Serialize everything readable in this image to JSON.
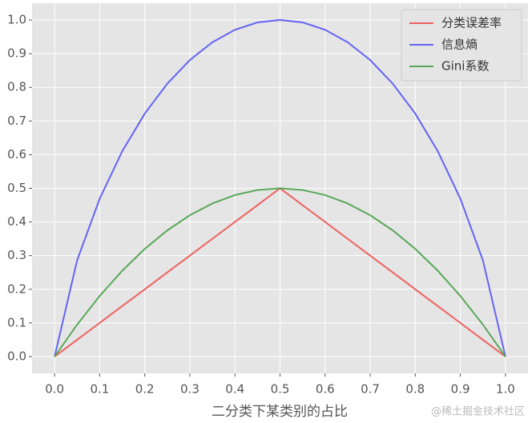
{
  "chart_data": {
    "type": "line",
    "xlabel": "二分类下某类别的占比",
    "watermark": "@稀土掘金技术社区",
    "x": [
      0,
      0.05,
      0.1,
      0.15,
      0.2,
      0.25,
      0.3,
      0.35,
      0.4,
      0.45,
      0.5,
      0.55,
      0.6,
      0.65,
      0.7,
      0.75,
      0.8,
      0.85,
      0.9,
      0.95,
      1
    ],
    "series": [
      {
        "name": "分类误差率",
        "color": "#ee6060",
        "values": [
          0,
          0.05,
          0.1,
          0.15,
          0.2,
          0.25,
          0.3,
          0.35,
          0.4,
          0.45,
          0.5,
          0.45,
          0.4,
          0.35,
          0.3,
          0.25,
          0.2,
          0.15,
          0.1,
          0.05,
          0
        ]
      },
      {
        "name": "信息熵",
        "color": "#6464f4",
        "values": [
          0,
          0.286,
          0.469,
          0.61,
          0.722,
          0.811,
          0.881,
          0.934,
          0.971,
          0.993,
          1,
          0.993,
          0.971,
          0.934,
          0.881,
          0.811,
          0.722,
          0.61,
          0.469,
          0.286,
          0
        ]
      },
      {
        "name": "Gini系数",
        "color": "#5aa85a",
        "values": [
          0,
          0.095,
          0.18,
          0.255,
          0.32,
          0.375,
          0.42,
          0.455,
          0.48,
          0.495,
          0.5,
          0.495,
          0.48,
          0.455,
          0.42,
          0.375,
          0.32,
          0.255,
          0.18,
          0.095,
          0
        ]
      }
    ],
    "xlim": [
      -0.05,
      1.05
    ],
    "ylim": [
      -0.05,
      1.05
    ],
    "xticks": [
      {
        "value": 0,
        "label": "0.0"
      },
      0.1,
      0.2,
      0.3,
      0.4,
      0.5,
      0.6,
      0.7,
      0.8,
      0.9,
      {
        "value": 1,
        "label": "1.0"
      }
    ],
    "yticks": [
      {
        "value": 0,
        "label": "0.0"
      },
      0.1,
      0.2,
      0.3,
      0.4,
      0.5,
      0.6,
      0.7,
      0.8,
      0.9,
      {
        "value": 1,
        "label": "1.0"
      }
    ],
    "grid": true,
    "legend": "upper right"
  }
}
